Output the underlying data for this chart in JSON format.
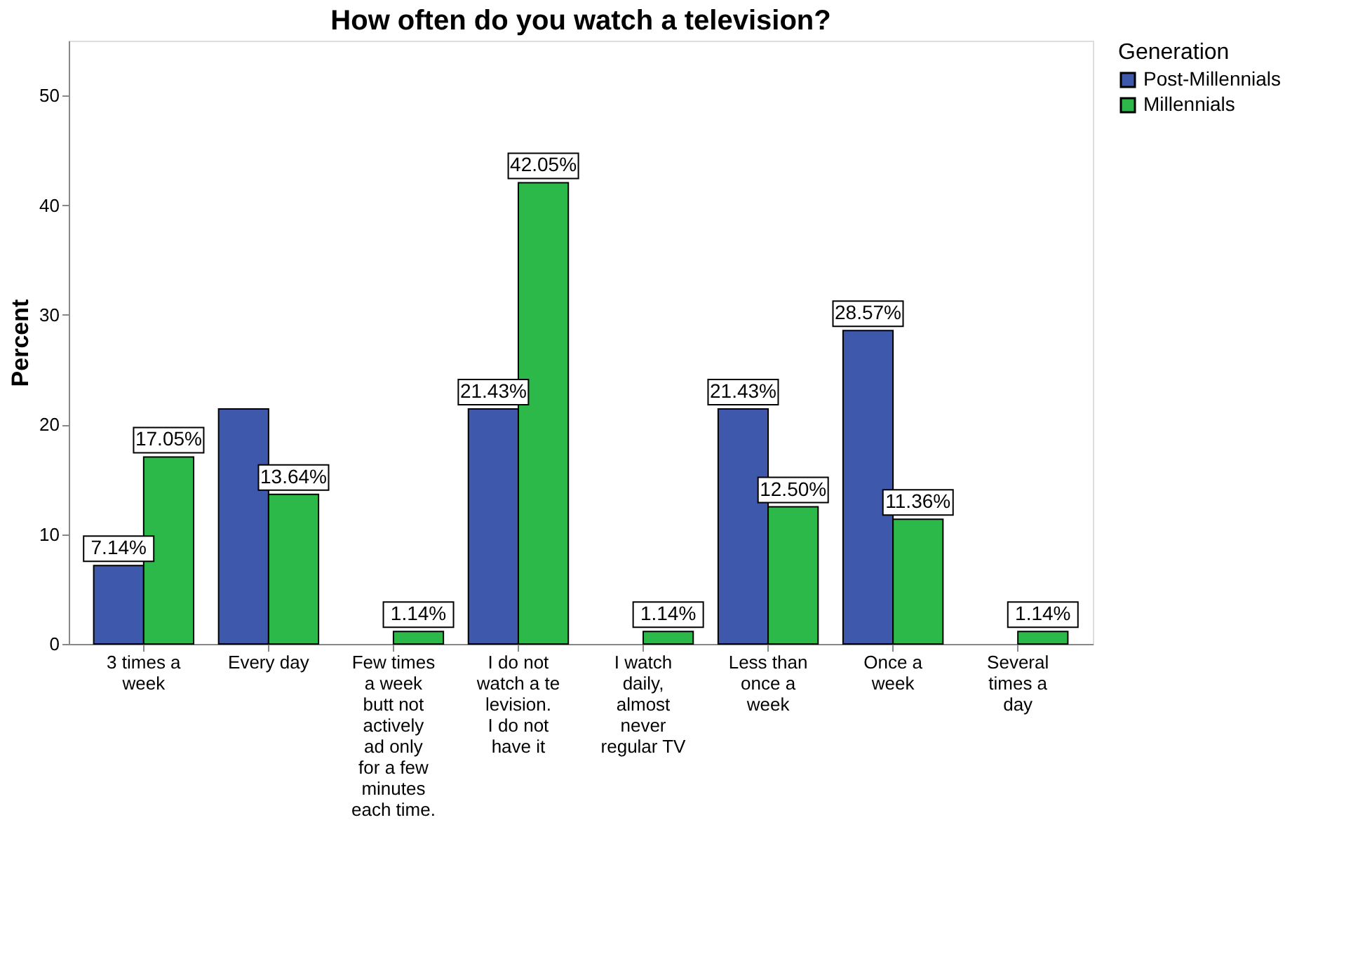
{
  "chart_data": {
    "type": "bar",
    "title": "How often do you watch a television?",
    "ylabel": "Percent",
    "legend_title": "Generation",
    "categories": [
      "3 times a week",
      "Every day",
      "Few times a week butt not actively ad only for a few minutes each time.",
      "I do not watch a television. I do not have it",
      "I watch daily, almost never regular TV",
      "Less than once a week",
      "Once a week",
      "Several times a day"
    ],
    "series": [
      {
        "name": "Post-Millennials",
        "color": "#3e58ac",
        "values": [
          7.14,
          21.43,
          null,
          21.43,
          null,
          21.43,
          28.57,
          null
        ],
        "value_labels": [
          "7.14%",
          null,
          null,
          "21.43%",
          null,
          "21.43%",
          "28.57%",
          null
        ]
      },
      {
        "name": "Millennials",
        "color": "#2db84a",
        "values": [
          17.05,
          13.64,
          1.14,
          42.05,
          1.14,
          12.5,
          11.36,
          1.14
        ],
        "value_labels": [
          "17.05%",
          "13.64%",
          "1.14%",
          "42.05%",
          "1.14%",
          "12.50%",
          "11.36%",
          "1.14%"
        ]
      }
    ],
    "ylim": [
      0,
      55
    ],
    "yticks": [
      0,
      10,
      20,
      30,
      40,
      50
    ],
    "grid": false,
    "legend": "top right"
  }
}
